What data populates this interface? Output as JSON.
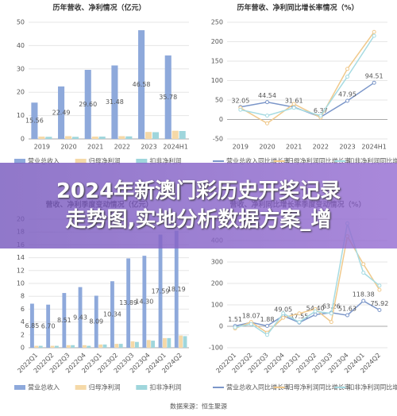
{
  "chart_data": [
    {
      "type": "bar",
      "title": "历年营收、净利情况（亿元）",
      "categories": [
        "2019",
        "2020",
        "2021",
        "2022",
        "2023",
        "2024H1"
      ],
      "ylim": [
        0,
        50
      ],
      "yticks": [
        0,
        10,
        20,
        30,
        40,
        50
      ],
      "grid": true,
      "rotate_labels": false,
      "series": [
        {
          "name": "营业总收入",
          "color": "#8ea9db",
          "values": [
            15.56,
            22.49,
            29.6,
            31.48,
            46.58,
            35.78
          ],
          "value_labels": [
            "15.56",
            "22.49",
            "29.60",
            "31.48",
            "46.58",
            "35.78"
          ]
        },
        {
          "name": "归母净利润",
          "color": "#f5d9a8",
          "values": [
            1.0,
            1.2,
            1.0,
            1.2,
            3.0,
            3.5
          ]
        },
        {
          "name": "扣非净利润",
          "color": "#9fd6dc",
          "values": [
            0.9,
            0.9,
            1.0,
            1.1,
            2.9,
            3.4
          ]
        }
      ]
    },
    {
      "type": "line",
      "title": "历年营收、净利同比增长率情况（%）",
      "categories": [
        "2019",
        "2020",
        "2021",
        "2022",
        "2023",
        "2024H1"
      ],
      "ylim": [
        -50,
        250
      ],
      "yticks": [
        -50,
        0,
        50,
        100,
        150,
        200,
        250
      ],
      "grid": true,
      "rotate_labels": false,
      "series": [
        {
          "name": "营业总收入同比增长率",
          "color": "#7b96c9",
          "values": [
            32.05,
            44.54,
            31.61,
            6.37,
            47.95,
            94.51
          ],
          "value_labels": [
            "32.05",
            "44.54",
            "31.61",
            "6.37",
            "47.95",
            "94.51"
          ]
        },
        {
          "name": "归母净利润同比增长率",
          "color": "#f0c98c",
          "values": [
            30,
            -10,
            40,
            5,
            130,
            225
          ]
        },
        {
          "name": "扣非净利润同比增长率",
          "color": "#a6dbe2",
          "values": [
            25,
            10,
            30,
            10,
            110,
            215
          ]
        }
      ]
    },
    {
      "type": "bar",
      "title": "营收、净利季度变动情况（亿元）",
      "categories": [
        "2022Q1",
        "2022Q2",
        "2022Q3",
        "2022Q4",
        "2023Q1",
        "2023Q2",
        "2023Q3",
        "2023Q4",
        "2024Q1",
        "2024Q2"
      ],
      "ylim": [
        0,
        20
      ],
      "yticks": [
        0,
        2,
        4,
        6,
        8,
        10,
        12,
        14,
        16,
        18,
        20
      ],
      "grid": true,
      "rotate_labels": true,
      "series": [
        {
          "name": "营业总收入",
          "color": "#8ea9db",
          "values": [
            6.85,
            6.7,
            8.51,
            9.43,
            8.09,
            10.34,
            13.89,
            14.3,
            17.59,
            18.19
          ],
          "value_labels": [
            "6.85",
            "6.70",
            "8.51",
            "9.43",
            "8.09",
            "10.34",
            "13.89",
            "14.30",
            "17.59",
            "18.19"
          ]
        },
        {
          "name": "归母净利润",
          "color": "#f5d9a8",
          "values": [
            0.3,
            0.3,
            0.4,
            0.4,
            0.5,
            0.6,
            1.0,
            1.2,
            1.5,
            1.9
          ]
        },
        {
          "name": "扣非净利润",
          "color": "#9fd6dc",
          "values": [
            0.3,
            0.3,
            0.4,
            0.3,
            0.5,
            0.6,
            0.9,
            1.1,
            1.5,
            1.8
          ]
        }
      ]
    },
    {
      "type": "line",
      "title": "营收、净利同比增长率季度变动情况（%）",
      "categories": [
        "2022Q1",
        "2022Q2",
        "2022Q3",
        "2022Q4",
        "2023Q1",
        "2023Q2",
        "2023Q3",
        "2023Q4",
        "2024Q1",
        "2024Q2"
      ],
      "ylim": [
        -100,
        500
      ],
      "yticks": [
        -100,
        0,
        100,
        200,
        300,
        400,
        500
      ],
      "grid": true,
      "rotate_labels": true,
      "series": [
        {
          "name": "营业总收入同比增长率",
          "color": "#7b96c9",
          "values": [
            1.51,
            18.07,
            1.88,
            49.05,
            17.55,
            54.4,
            63.26,
            51.63,
            118.38,
            75.92
          ],
          "value_labels": [
            "1.51",
            "18.07",
            "1.88",
            "49.05",
            "17.55",
            "54.40",
            "63.26",
            "51.63",
            "118.38",
            "75.92"
          ]
        },
        {
          "name": "归母净利润同比增长率",
          "color": "#f0c98c",
          "values": [
            -10,
            20,
            -30,
            40,
            60,
            80,
            20,
            420,
            290,
            170
          ]
        },
        {
          "name": "扣非净利润同比增长率",
          "color": "#a6dbe2",
          "values": [
            -5,
            10,
            -40,
            60,
            20,
            70,
            60,
            480,
            250,
            190
          ]
        }
      ]
    }
  ],
  "banner": {
    "lines": [
      "2024年新澳门彩历史开奖记录",
      "走势图,实地分析数据方案_增"
    ]
  },
  "source": "数据来源：恒生聚源"
}
